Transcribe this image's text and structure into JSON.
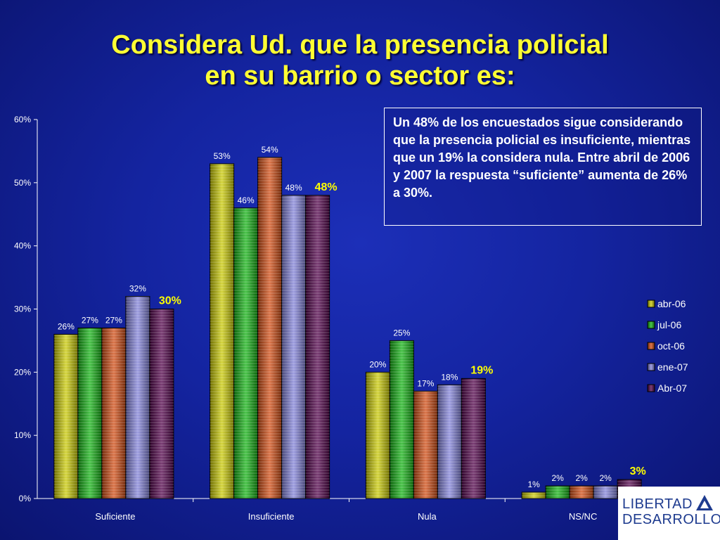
{
  "slide": {
    "title_line1": "Considera Ud. que la presencia policial",
    "title_line2": "en su barrio o sector es:",
    "note": "Un 48% de los encuestados sigue considerando que la presencia policial es insuficiente, mientras que un 19% la considera nula. Entre abril de 2006 y 2007 la respuesta “suficiente” aumenta de 26% a 30%.",
    "logo_line1": "LIBERTAD",
    "logo_line2": "DESARROLLO"
  },
  "chart_data": {
    "type": "bar",
    "categories": [
      "Suficiente",
      "Insuficiente",
      "Nula",
      "NS/NC"
    ],
    "series": [
      {
        "name": "abr-06",
        "values": [
          26,
          53,
          20,
          1
        ],
        "color": "#c8c800"
      },
      {
        "name": "jul-06",
        "values": [
          27,
          46,
          25,
          2
        ],
        "color": "#10b010"
      },
      {
        "name": "oct-06",
        "values": [
          27,
          54,
          17,
          2
        ],
        "color": "#d04a10"
      },
      {
        "name": "ene-07",
        "values": [
          32,
          48,
          18,
          2
        ],
        "color": "#8080d8"
      },
      {
        "name": "Abr-07",
        "values": [
          30,
          48,
          19,
          3
        ],
        "color": "#500048"
      }
    ],
    "data_labels": [
      [
        "26%",
        "53%",
        "20%",
        "1%"
      ],
      [
        "27%",
        "46%",
        "25%",
        "2%"
      ],
      [
        "27%",
        "54%",
        "17%",
        "2%"
      ],
      [
        "32%",
        "48%",
        "18%",
        "2%"
      ],
      [
        "30%",
        "48%",
        "19%",
        "3%"
      ]
    ],
    "highlight_series": "Abr-07",
    "highlight_label_color": "#ffff00",
    "ylim": [
      0,
      60
    ],
    "yticks": [
      0,
      10,
      20,
      30,
      40,
      50,
      60
    ],
    "ytick_labels": [
      "0%",
      "10%",
      "20%",
      "30%",
      "40%",
      "50%",
      "60%"
    ],
    "legend_position": "right",
    "grid": false
  }
}
